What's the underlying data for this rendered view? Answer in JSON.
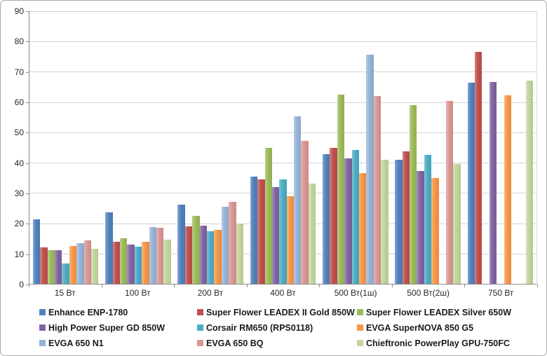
{
  "chart_data": {
    "type": "bar",
    "title": "",
    "xlabel": "",
    "ylabel": "",
    "ylim": [
      0,
      90
    ],
    "yticks": [
      0,
      10,
      20,
      30,
      40,
      50,
      60,
      70,
      80,
      90
    ],
    "grid": true,
    "legend_position": "bottom",
    "categories": [
      "15 Вт",
      "100 Вт",
      "200 Вт",
      "400 Вт",
      "500 Вт(1ш)",
      "500 Вт(2ш)",
      "750 Вт"
    ],
    "series": [
      {
        "name": "Enhance ENP-1780",
        "color": "#4F81BD",
        "values": [
          21.2,
          23.5,
          26.1,
          35.3,
          42.7,
          41.0,
          66.5
        ]
      },
      {
        "name": "Super Flower LEADEX II Gold 850W",
        "color": "#C0504D",
        "values": [
          12.1,
          14.0,
          19.0,
          34.4,
          45.0,
          43.7,
          76.7
        ]
      },
      {
        "name": "Super Flower LEADEX Silver 650W",
        "color": "#9BBB59",
        "values": [
          11.0,
          15.0,
          22.5,
          45.0,
          62.4,
          59.0,
          null
        ]
      },
      {
        "name": "High Power Super GD 850W",
        "color": "#8064A2",
        "values": [
          11.2,
          12.9,
          19.3,
          31.9,
          41.5,
          37.3,
          66.6
        ]
      },
      {
        "name": "Corsair RM650 (RPS0118)",
        "color": "#4BACC6",
        "values": [
          6.6,
          12.2,
          17.4,
          34.5,
          44.3,
          42.5,
          null
        ]
      },
      {
        "name": "EVGA SuperNOVA 850 G5",
        "color": "#F79646",
        "values": [
          12.5,
          13.8,
          17.9,
          28.9,
          36.6,
          35.0,
          62.3
        ]
      },
      {
        "name": "EVGA 650 N1",
        "color": "#95B3D7",
        "values": [
          13.4,
          18.8,
          25.4,
          55.4,
          75.7,
          null,
          null
        ]
      },
      {
        "name": "EVGA 650 BQ",
        "color": "#D99694",
        "values": [
          14.3,
          18.5,
          27.0,
          47.3,
          61.9,
          60.5,
          null
        ]
      },
      {
        "name": "Chieftronic PowerPlay GPU-750FC",
        "color": "#C2D69B",
        "values": [
          11.6,
          14.5,
          20.0,
          33.0,
          41.0,
          39.6,
          67.0
        ]
      }
    ],
    "axis_text_color": "#262626",
    "gridline_color": "#d4d4d4",
    "axis_line_color": "#8c8c8c"
  }
}
